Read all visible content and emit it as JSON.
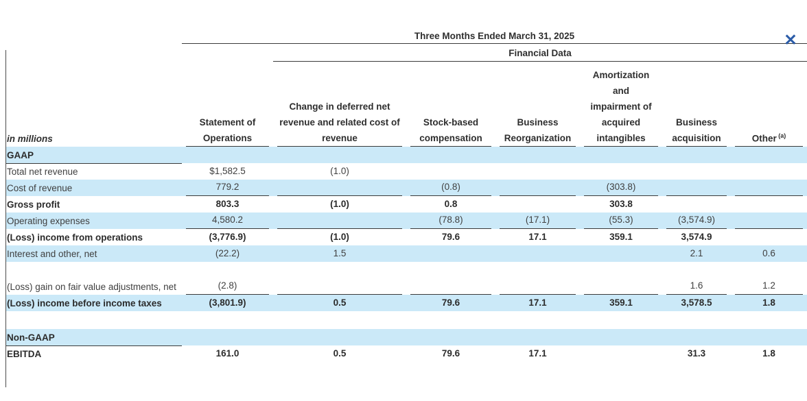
{
  "icons": {
    "close": "✕"
  },
  "colors": {
    "row_highlight": "#cbe9f8",
    "close_icon": "#2b5ca8",
    "rule_line": "#3a3a3a",
    "text": "#3f3f3f"
  },
  "header": {
    "period_title": "Three Months Ended March 31, 2025",
    "group_title": "Financial Data",
    "row_label_header": "in millions",
    "columns": [
      {
        "lines": [
          "Statement of",
          "Operations"
        ]
      },
      {
        "lines": [
          "Change in deferred net",
          "revenue and related cost of",
          "revenue"
        ]
      },
      {
        "lines": [
          "Stock-based",
          "compensation"
        ]
      },
      {
        "lines": [
          "Business",
          "Reorganization"
        ]
      },
      {
        "lines": [
          "Amortization",
          "and",
          "impairment of",
          "acquired",
          "intangibles"
        ]
      },
      {
        "lines": [
          "Business",
          "acquisition"
        ]
      },
      {
        "lines": [
          "Other"
        ],
        "sup": "(a)"
      }
    ]
  },
  "table": {
    "rows": [
      {
        "label": "GAAP",
        "bold": true,
        "shaded": true,
        "label_underline": true,
        "values": [
          "",
          "",
          "",
          "",
          "",
          "",
          ""
        ]
      },
      {
        "label": "Total net revenue",
        "values": [
          "$1,582.5",
          "(1.0)",
          "",
          "",
          "",
          "",
          ""
        ]
      },
      {
        "label": "Cost of revenue",
        "shaded": true,
        "values_underline": true,
        "values": [
          "779.2",
          "",
          "(0.8)",
          "",
          "(303.8)",
          "",
          ""
        ]
      },
      {
        "label": "Gross profit",
        "bold": true,
        "values": [
          "803.3",
          "(1.0)",
          "0.8",
          "",
          "303.8",
          "",
          ""
        ]
      },
      {
        "label": "Operating expenses",
        "shaded": true,
        "values_underline": true,
        "values": [
          "4,580.2",
          "",
          "(78.8)",
          "(17.1)",
          "(55.3)",
          "(3,574.9)",
          ""
        ]
      },
      {
        "label": "(Loss) income from operations",
        "bold": true,
        "values": [
          "(3,776.9)",
          "(1.0)",
          "79.6",
          "17.1",
          "359.1",
          "3,574.9",
          ""
        ]
      },
      {
        "label": "Interest and other, net",
        "shaded": true,
        "values": [
          "(22.2)",
          "1.5",
          "",
          "",
          "",
          "2.1",
          "0.6"
        ]
      },
      {
        "label": "(Loss) gain on fair value adjustments, net",
        "tall": true,
        "values_underline": true,
        "values": [
          "(2.8)",
          "",
          "",
          "",
          "",
          "1.6",
          "1.2"
        ]
      },
      {
        "label": "(Loss) income before income taxes",
        "bold": true,
        "shaded": true,
        "values": [
          "(3,801.9)",
          "0.5",
          "79.6",
          "17.1",
          "359.1",
          "3,578.5",
          "1.8"
        ]
      },
      {
        "label": "",
        "spacer": true,
        "values": [
          "",
          "",
          "",
          "",
          "",
          "",
          ""
        ]
      },
      {
        "label": "Non-GAAP",
        "bold": true,
        "shaded": true,
        "label_underline": true,
        "values": [
          "",
          "",
          "",
          "",
          "",
          "",
          ""
        ]
      },
      {
        "label": "EBITDA",
        "bold": true,
        "values": [
          "161.0",
          "0.5",
          "79.6",
          "17.1",
          "",
          "31.3",
          "1.8"
        ]
      }
    ]
  }
}
